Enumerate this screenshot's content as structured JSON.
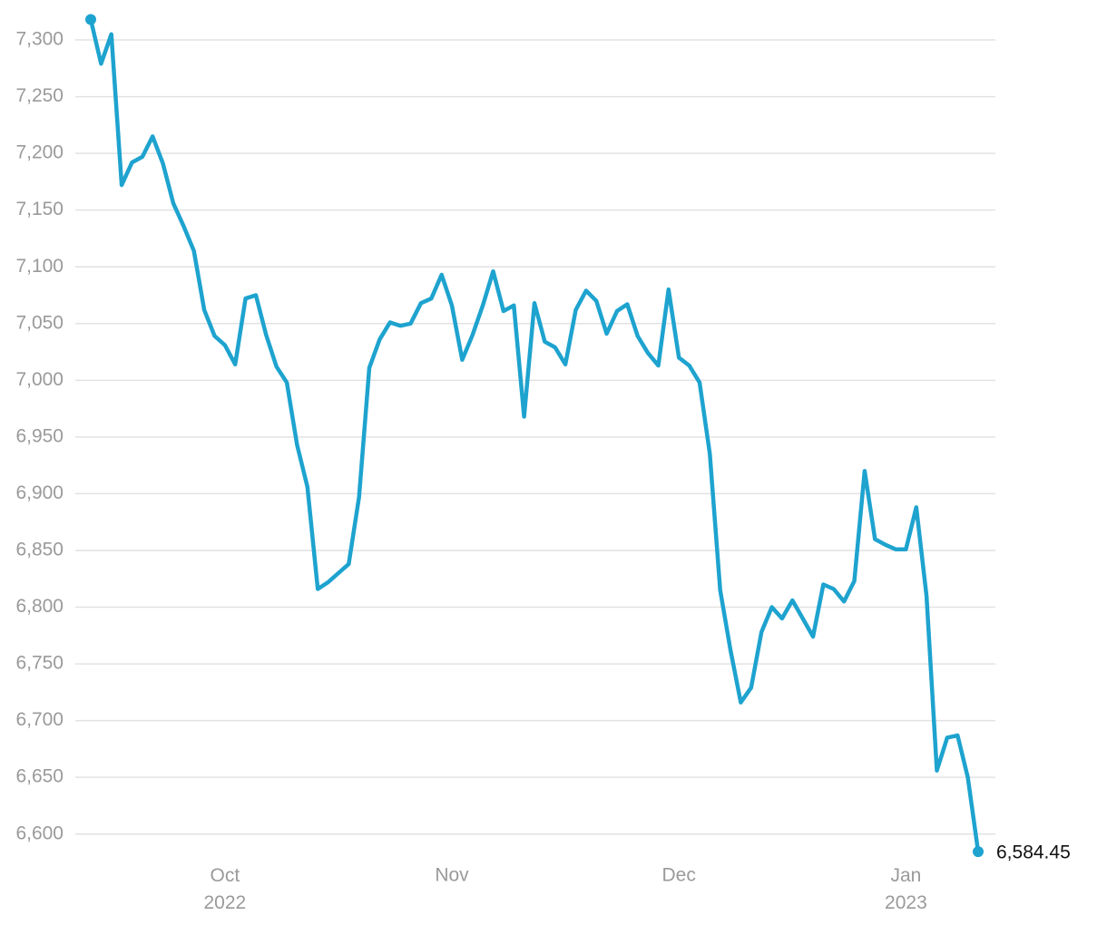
{
  "chart_data": {
    "type": "line",
    "categories": [
      null,
      null,
      null,
      null,
      null,
      null,
      null,
      null,
      null,
      null,
      null,
      null,
      null,
      "Oct 2022",
      null,
      null,
      null,
      null,
      null,
      null,
      null,
      null,
      null,
      null,
      null,
      null,
      null,
      null,
      null,
      null,
      null,
      null,
      null,
      null,
      null,
      "Nov",
      null,
      null,
      null,
      null,
      null,
      null,
      null,
      null,
      null,
      null,
      null,
      null,
      null,
      null,
      null,
      null,
      null,
      null,
      null,
      null,
      null,
      "Dec",
      null,
      null,
      null,
      null,
      null,
      null,
      null,
      null,
      null,
      null,
      null,
      null,
      null,
      null,
      null,
      null,
      null,
      null,
      null,
      null,
      null,
      "Jan 2023",
      null,
      null,
      null,
      null,
      null,
      null,
      null
    ],
    "series": [
      {
        "color": "#1ea3cf",
        "values": [
          7318,
          7279,
          7305,
          7172,
          7192,
          7197,
          7215,
          7191,
          7156,
          7136,
          7114,
          7062,
          7039,
          7031,
          7014,
          7072,
          7075,
          7040,
          7012,
          6998,
          6943,
          6906,
          6816,
          6822,
          6830,
          6838,
          6897,
          7011,
          7036,
          7051,
          7048,
          7050,
          7068,
          7072,
          7093,
          7066,
          7018,
          7040,
          7066,
          7096,
          7061,
          7066,
          6968,
          7068,
          7034,
          7029,
          7014,
          7062,
          7079,
          7070,
          7041,
          7061,
          7067,
          7039,
          7024,
          7013,
          7080,
          7020,
          7013,
          6998,
          6935,
          6815,
          6762,
          6716,
          6729,
          6778,
          6800,
          6790,
          6806,
          6790,
          6774,
          6820,
          6816,
          6805,
          6823,
          6920,
          6860,
          6855,
          6851,
          6851,
          6888,
          6810,
          6656,
          6685,
          6687,
          6650,
          6584.45
        ],
        "value_labels": [
          null,
          null,
          null,
          null,
          null,
          null,
          null,
          null,
          null,
          null,
          null,
          null,
          null,
          null,
          null,
          null,
          null,
          null,
          null,
          null,
          null,
          null,
          null,
          null,
          null,
          null,
          null,
          null,
          null,
          null,
          null,
          null,
          null,
          null,
          null,
          null,
          null,
          null,
          null,
          null,
          null,
          null,
          null,
          null,
          null,
          null,
          null,
          null,
          null,
          null,
          null,
          null,
          null,
          null,
          null,
          null,
          null,
          null,
          null,
          null,
          null,
          null,
          null,
          null,
          null,
          null,
          null,
          null,
          null,
          null,
          null,
          null,
          null,
          null,
          null,
          null,
          null,
          null,
          null,
          null,
          null,
          null,
          null,
          null,
          null,
          null,
          "6,584.45"
        ]
      }
    ],
    "ylim": [
      6575,
      7320
    ],
    "yticks": [
      {
        "value": 6600,
        "label": "6,600"
      },
      {
        "value": 6650,
        "label": "6,650"
      },
      {
        "value": 6700,
        "label": "6,700"
      },
      {
        "value": 6750,
        "label": "6,750"
      },
      {
        "value": 6800,
        "label": "6,800"
      },
      {
        "value": 6850,
        "label": "6,850"
      },
      {
        "value": 6900,
        "label": "6,900"
      },
      {
        "value": 6950,
        "label": "6,950"
      },
      {
        "value": 7000,
        "label": "7,000"
      },
      {
        "value": 7050,
        "label": "7,050"
      },
      {
        "value": 7100,
        "label": "7,100"
      },
      {
        "value": 7150,
        "label": "7,150"
      },
      {
        "value": 7200,
        "label": "7,200"
      },
      {
        "value": 7250,
        "label": "7,250"
      },
      {
        "value": 7300,
        "label": "7,300"
      }
    ],
    "grid": true
  }
}
